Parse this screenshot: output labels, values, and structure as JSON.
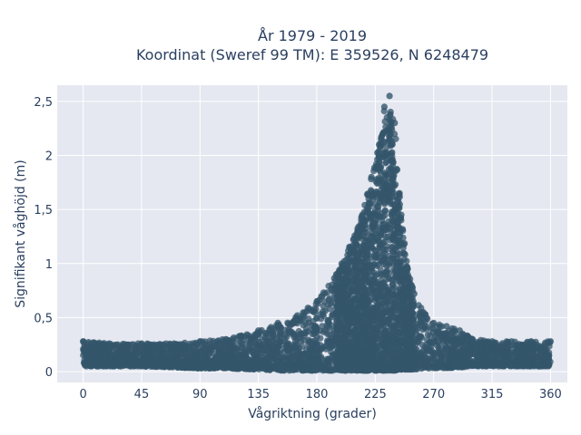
{
  "chart_data": {
    "type": "scatter",
    "title_line1": "År 1979 - 2019",
    "title_line2": "Koordinat (Sweref 99 TM): E 359526, N 6248479",
    "xlabel": "Vågriktning (grader)",
    "ylabel": "Signifikant våghöjd (m)",
    "xlim": [
      -20,
      373
    ],
    "ylim": [
      -0.1,
      2.65
    ],
    "xticks": [
      0,
      45,
      90,
      135,
      180,
      225,
      270,
      315,
      360
    ],
    "xtick_labels": [
      "0",
      "45",
      "90",
      "135",
      "180",
      "225",
      "270",
      "315",
      "360"
    ],
    "yticks": [
      0,
      0.5,
      1,
      1.5,
      2,
      2.5
    ],
    "ytick_labels": [
      "0",
      "0,5",
      "1",
      "1,5",
      "2",
      "2,5"
    ],
    "grid": true,
    "marker_color": "#34566b",
    "plot_bg": "#e5e8f0",
    "envelope": {
      "direction": [
        0,
        20,
        45,
        70,
        90,
        110,
        135,
        150,
        165,
        180,
        195,
        205,
        215,
        222,
        228,
        232,
        236,
        240,
        245,
        250,
        255,
        262,
        270,
        280,
        290,
        300,
        315,
        330,
        345,
        360
      ],
      "max_height": [
        0.28,
        0.26,
        0.26,
        0.26,
        0.28,
        0.3,
        0.38,
        0.45,
        0.52,
        0.65,
        0.9,
        1.15,
        1.45,
        1.8,
        2.1,
        2.45,
        2.55,
        2.3,
        1.45,
        0.95,
        0.72,
        0.55,
        0.45,
        0.42,
        0.38,
        0.3,
        0.28,
        0.28,
        0.28,
        0.28
      ],
      "min_height": [
        0.05,
        0.05,
        0.05,
        0.04,
        0.03,
        0.03,
        0.02,
        0.01,
        0.01,
        0.01,
        0.01,
        0.01,
        0.01,
        0.01,
        0.01,
        0.01,
        0.01,
        0.01,
        0.02,
        0.02,
        0.02,
        0.03,
        0.03,
        0.03,
        0.04,
        0.05,
        0.05,
        0.05,
        0.05,
        0.05
      ]
    }
  }
}
